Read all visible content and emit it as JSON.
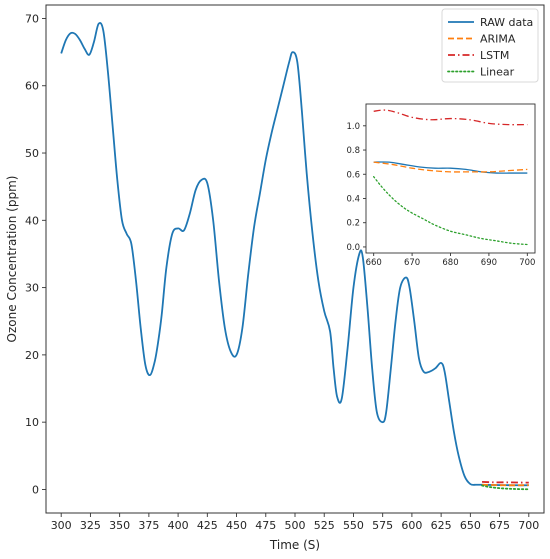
{
  "chart_data": [
    {
      "id": "main",
      "type": "line",
      "title": "",
      "xlabel": "Time (S)",
      "ylabel": "Ozone Concentration (ppm)",
      "xlim": [
        287,
        713
      ],
      "ylim": [
        -3.5,
        72
      ],
      "xticks": [
        300,
        325,
        350,
        375,
        400,
        425,
        450,
        475,
        500,
        525,
        550,
        575,
        600,
        625,
        650,
        675,
        700
      ],
      "yticks": [
        0,
        10,
        20,
        30,
        40,
        50,
        60,
        70
      ],
      "grid": false,
      "legend_position": "top-right",
      "series": [
        {
          "name": "RAW data",
          "color": "#1f77b4",
          "style": "solid",
          "x": [
            300,
            304,
            308,
            312,
            316,
            320,
            324,
            328,
            332,
            336,
            340,
            344,
            348,
            352,
            356,
            360,
            364,
            368,
            372,
            376,
            380,
            383,
            386,
            390,
            395,
            400,
            405,
            410,
            415,
            420,
            425,
            430,
            435,
            440,
            445,
            450,
            455,
            460,
            465,
            470,
            475,
            480,
            485,
            490,
            495,
            498,
            502,
            506,
            510,
            515,
            520,
            525,
            530,
            533,
            536,
            540,
            545,
            550,
            555,
            558,
            562,
            566,
            570,
            575,
            578,
            582,
            586,
            590,
            595,
            598,
            602,
            606,
            610,
            615,
            620,
            625,
            628,
            632,
            636,
            640,
            645,
            650,
            655,
            660,
            665,
            670,
            680,
            690,
            700
          ],
          "y": [
            64.8,
            66.8,
            67.8,
            67.7,
            66.8,
            65.5,
            64.6,
            66.5,
            69.2,
            68.2,
            62.0,
            54.0,
            46.0,
            40.0,
            38.0,
            36.5,
            31.0,
            24.0,
            18.5,
            17.0,
            19.0,
            22.0,
            26.0,
            33.0,
            38.0,
            38.8,
            38.5,
            41.0,
            44.5,
            46.0,
            45.5,
            40.0,
            31.0,
            24.0,
            20.5,
            20.0,
            24.0,
            32.0,
            39.0,
            44.0,
            49.0,
            53.0,
            56.5,
            60.0,
            63.5,
            65.0,
            63.5,
            56.0,
            47.0,
            38.0,
            31.0,
            26.5,
            23.5,
            18.0,
            13.8,
            13.5,
            21.0,
            30.0,
            35.0,
            34.5,
            27.0,
            18.0,
            11.5,
            10.0,
            11.5,
            18.0,
            25.0,
            30.0,
            31.5,
            30.0,
            25.0,
            19.5,
            17.5,
            17.5,
            18.0,
            18.8,
            17.5,
            13.0,
            8.5,
            5.0,
            2.0,
            0.8,
            0.7,
            0.7,
            0.67,
            0.66,
            0.64,
            0.62,
            0.62
          ]
        },
        {
          "name": "ARIMA",
          "color": "#ff7f0e",
          "style": "dashed",
          "x": [
            660,
            670,
            680,
            690,
            700
          ],
          "y": [
            0.7,
            0.66,
            0.62,
            0.62,
            0.64
          ]
        },
        {
          "name": "LSTM",
          "color": "#d62728",
          "style": "dashdot",
          "x": [
            660,
            670,
            680,
            690,
            700
          ],
          "y": [
            1.12,
            1.06,
            1.06,
            1.03,
            1.01
          ]
        },
        {
          "name": "Linear",
          "color": "#2ca02c",
          "style": "dotted",
          "x": [
            660,
            665,
            670,
            675,
            680,
            685,
            690,
            695,
            700
          ],
          "y": [
            0.58,
            0.4,
            0.28,
            0.19,
            0.13,
            0.09,
            0.06,
            0.04,
            0.02
          ]
        }
      ]
    },
    {
      "id": "inset",
      "type": "line",
      "title": "",
      "xlabel": "",
      "ylabel": "",
      "xlim": [
        658,
        702
      ],
      "ylim": [
        -0.05,
        1.18
      ],
      "xticks": [
        660,
        670,
        680,
        690,
        700
      ],
      "yticks": [
        0.0,
        0.2,
        0.4,
        0.6,
        0.8,
        1.0
      ],
      "ytick_labels": [
        "0.0",
        "0.2",
        "0.4",
        "0.6",
        "0.8",
        "1.0"
      ],
      "grid": false,
      "series": [
        {
          "name": "RAW data",
          "color": "#1f77b4",
          "style": "solid",
          "x": [
            660,
            664,
            668,
            672,
            676,
            680,
            684,
            688,
            692,
            696,
            700
          ],
          "y": [
            0.7,
            0.7,
            0.68,
            0.66,
            0.65,
            0.65,
            0.64,
            0.62,
            0.61,
            0.61,
            0.61
          ]
        },
        {
          "name": "ARIMA",
          "color": "#ff7f0e",
          "style": "dashed",
          "x": [
            660,
            665,
            670,
            675,
            680,
            685,
            690,
            695,
            700
          ],
          "y": [
            0.7,
            0.68,
            0.65,
            0.63,
            0.62,
            0.62,
            0.62,
            0.63,
            0.64
          ]
        },
        {
          "name": "LSTM",
          "color": "#d62728",
          "style": "dashdot",
          "x": [
            660,
            663,
            666,
            670,
            675,
            680,
            685,
            690,
            695,
            700
          ],
          "y": [
            1.12,
            1.13,
            1.11,
            1.07,
            1.05,
            1.06,
            1.05,
            1.02,
            1.01,
            1.01
          ]
        },
        {
          "name": "Linear",
          "color": "#2ca02c",
          "style": "dotted",
          "x": [
            660,
            662,
            664,
            666,
            668,
            670,
            673,
            676,
            680,
            684,
            688,
            692,
            696,
            700
          ],
          "y": [
            0.58,
            0.5,
            0.43,
            0.37,
            0.32,
            0.28,
            0.23,
            0.18,
            0.13,
            0.1,
            0.07,
            0.05,
            0.03,
            0.02
          ]
        }
      ]
    }
  ]
}
